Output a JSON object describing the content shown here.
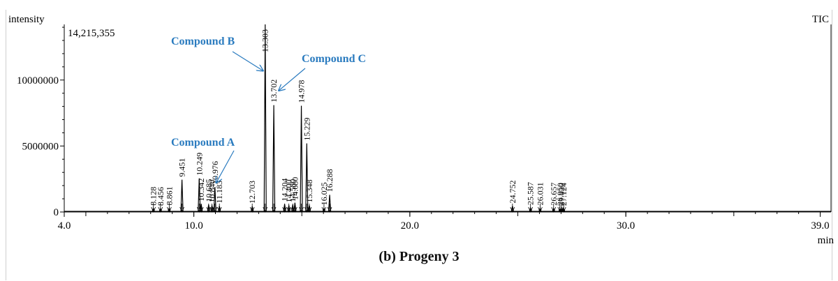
{
  "chart_data": {
    "type": "line",
    "ylabel": "intensity",
    "xlabel": "min",
    "trace_label": "TIC",
    "max_intensity_label": "14,215,355",
    "xlim": [
      4.0,
      39.5
    ],
    "ylim": [
      0,
      14215355
    ],
    "x_ticks": [
      4.0,
      10.0,
      20.0,
      30.0,
      39.0
    ],
    "x_tick_labels": [
      "4.0",
      "10.0",
      "20.0",
      "30.0",
      "39.0"
    ],
    "y_ticks": [
      0,
      5000000,
      10000000
    ],
    "y_tick_labels": [
      "0",
      "5000000",
      "10000000"
    ],
    "peaks": [
      {
        "rt": 8.128,
        "label": "8.128",
        "height": 280000
      },
      {
        "rt": 8.456,
        "label": "8.456",
        "height": 260000
      },
      {
        "rt": 8.861,
        "label": "8.861",
        "height": 300000
      },
      {
        "rt": 9.451,
        "label": "9.451",
        "height": 2450000
      },
      {
        "rt": 10.249,
        "label": "10.249",
        "height": 2550000
      },
      {
        "rt": 10.342,
        "label": "10.342",
        "height": 600000
      },
      {
        "rt": 10.685,
        "label": "10.685",
        "height": 550000
      },
      {
        "rt": 10.84,
        "label": "10.840",
        "height": 500000
      },
      {
        "rt": 10.976,
        "label": "10.976",
        "height": 1900000
      },
      {
        "rt": 11.183,
        "label": "11.183",
        "height": 450000
      },
      {
        "rt": 12.703,
        "label": "12.703",
        "height": 420000
      },
      {
        "rt": 13.303,
        "label": "13.303",
        "height": 14215355
      },
      {
        "rt": 13.702,
        "label": "13.702",
        "height": 8100000
      },
      {
        "rt": 14.204,
        "label": "14.204",
        "height": 600000
      },
      {
        "rt": 14.4,
        "label": "14.400",
        "height": 500000
      },
      {
        "rt": 14.58,
        "label": "14.580",
        "height": 550000
      },
      {
        "rt": 14.68,
        "label": "14.680",
        "height": 700000
      },
      {
        "rt": 14.978,
        "label": "14.978",
        "height": 8050000
      },
      {
        "rt": 15.229,
        "label": "15.229",
        "height": 5200000
      },
      {
        "rt": 15.348,
        "label": "15.348",
        "height": 500000
      },
      {
        "rt": 16.025,
        "label": "16.025",
        "height": 300000
      },
      {
        "rt": 16.288,
        "label": "16.288",
        "height": 1300000
      },
      {
        "rt": 24.752,
        "label": "24.752",
        "height": 450000
      },
      {
        "rt": 25.587,
        "label": "25.587",
        "height": 320000
      },
      {
        "rt": 26.031,
        "label": "26.031",
        "height": 300000
      },
      {
        "rt": 26.657,
        "label": "26.657",
        "height": 280000
      },
      {
        "rt": 26.95,
        "label": "26.950",
        "height": 260000
      },
      {
        "rt": 27.02,
        "label": "27.020",
        "height": 250000
      },
      {
        "rt": 27.124,
        "label": "27.124",
        "height": 260000
      }
    ],
    "annotations": [
      {
        "text": "Compound A",
        "rt": 11.0,
        "intensity": 2000000
      },
      {
        "text": "Compound B",
        "rt": 13.303,
        "intensity": 10700000
      },
      {
        "text": "Compound C",
        "rt": 13.8,
        "intensity": 9300000
      }
    ],
    "annotation_color": "#2a7bbf",
    "line_color": "#000000"
  },
  "caption": "(b) Progeny 3"
}
